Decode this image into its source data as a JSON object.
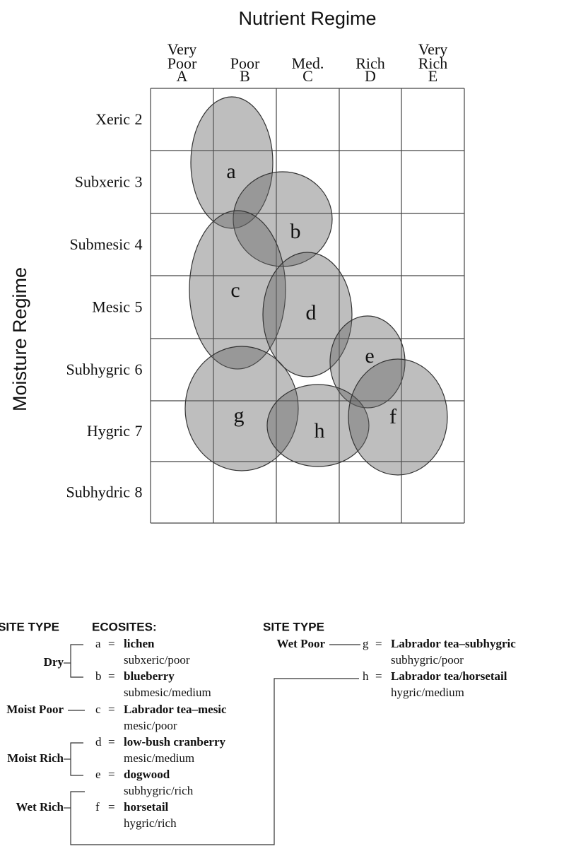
{
  "nutrient_axis": {
    "title": "Nutrient Regime",
    "columns": [
      {
        "lines": [
          "Very",
          "Poor"
        ],
        "code": "A"
      },
      {
        "lines": [
          "Poor"
        ],
        "code": "B"
      },
      {
        "lines": [
          "Med."
        ],
        "code": "C"
      },
      {
        "lines": [
          "Rich"
        ],
        "code": "D"
      },
      {
        "lines": [
          "Very",
          "Rich"
        ],
        "code": "E"
      }
    ]
  },
  "moisture_axis": {
    "title": "Moisture Regime",
    "rows": [
      {
        "label": "Xeric",
        "code": "2"
      },
      {
        "label": "Subxeric",
        "code": "3"
      },
      {
        "label": "Submesic",
        "code": "4"
      },
      {
        "label": "Mesic",
        "code": "5"
      },
      {
        "label": "Subhygric",
        "code": "6"
      },
      {
        "label": "Hygric",
        "code": "7"
      },
      {
        "label": "Subhydric",
        "code": "8"
      }
    ]
  },
  "ecosites": [
    "a",
    "b",
    "c",
    "d",
    "e",
    "g",
    "h",
    "f"
  ],
  "legend": {
    "site_type_header": "SITE TYPE",
    "ecosites_header": "ECOSITES:",
    "equals": "=",
    "groups": [
      "Dry",
      "Moist Poor",
      "Moist Rich",
      "Wet Rich",
      "Wet Poor"
    ],
    "entries": [
      {
        "letter": "a",
        "name": "lichen",
        "site": "subxeric/poor"
      },
      {
        "letter": "b",
        "name": "blueberry",
        "site": "submesic/medium"
      },
      {
        "letter": "c",
        "name": "Labrador tea–mesic",
        "site": "mesic/poor"
      },
      {
        "letter": "d",
        "name": "low-bush cranberry",
        "site": "mesic/medium"
      },
      {
        "letter": "e",
        "name": "dogwood",
        "site": "subhygric/rich"
      },
      {
        "letter": "f",
        "name": "horsetail",
        "site": "hygric/rich"
      },
      {
        "letter": "g",
        "name": "Labrador tea–subhygric",
        "site": "subhygric/poor"
      },
      {
        "letter": "h",
        "name": "Labrador tea/horsetail",
        "site": "hygric/medium"
      }
    ]
  }
}
